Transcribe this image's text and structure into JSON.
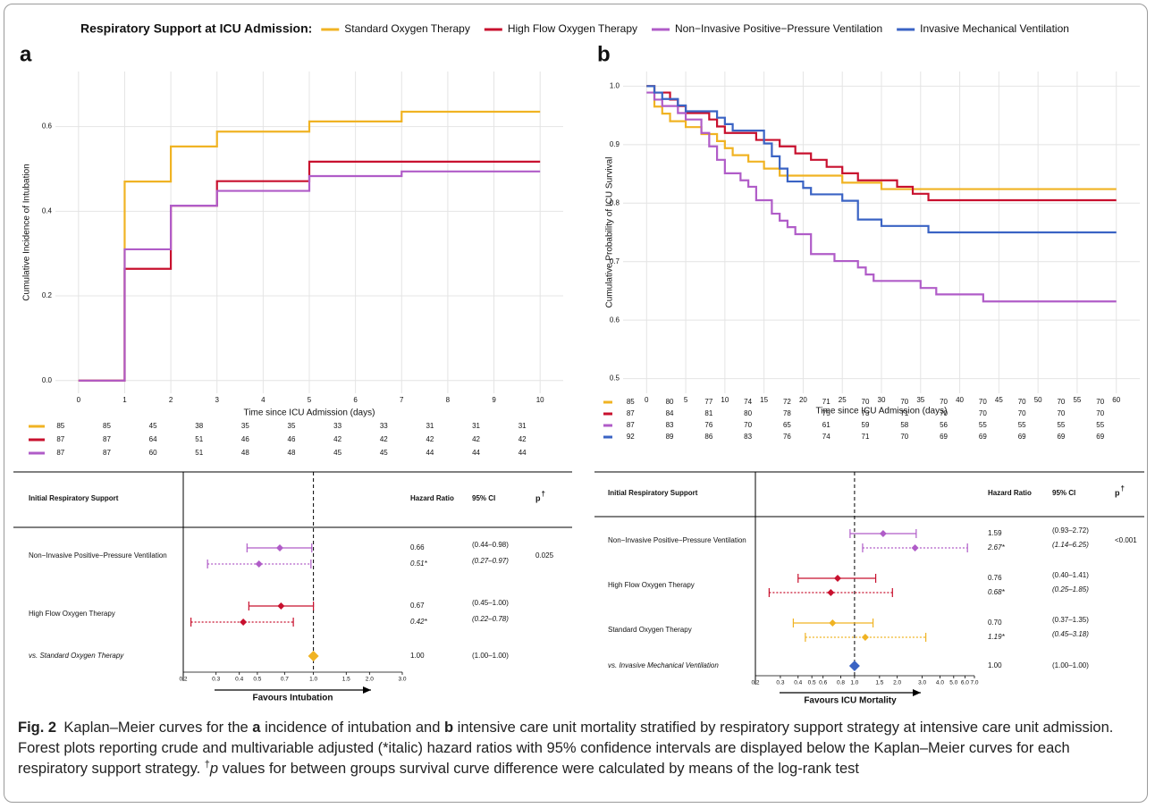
{
  "legend_title": "Respiratory Support at ICU Admission:",
  "chart_data": [
    {
      "type": "step",
      "panel": "a",
      "xlabel": "Time since ICU Admission (days)",
      "ylabel": "Cumulative Incidence of Intubation",
      "xlim": [
        -0.5,
        10.5
      ],
      "ylim": [
        -0.03,
        0.73
      ],
      "xticks": [
        0,
        1,
        2,
        3,
        4,
        5,
        6,
        7,
        8,
        9,
        10
      ],
      "yticks": [
        {
          "value": 0,
          "label": "0.0"
        },
        0.2,
        0.4,
        0.6
      ],
      "grid": true,
      "series": [
        {
          "color": "#f0b323",
          "x": [
            0,
            1,
            2,
            3,
            5,
            7,
            10
          ],
          "values": [
            0,
            0.47,
            0.553,
            0.588,
            0.612,
            0.635,
            0.635
          ],
          "at_risk": [
            85,
            85,
            45,
            38,
            35,
            35,
            33,
            33,
            31,
            31,
            31
          ]
        },
        {
          "color": "#c8102e",
          "x": [
            0,
            1,
            2,
            3,
            5,
            10
          ],
          "values": [
            0,
            0.264,
            0.413,
            0.471,
            0.517,
            0.517
          ],
          "at_risk": [
            87,
            87,
            64,
            51,
            46,
            46,
            42,
            42,
            42,
            42,
            42
          ]
        },
        {
          "color": "#b05cc8",
          "x": [
            0,
            1,
            2,
            3,
            5,
            7,
            10
          ],
          "values": [
            0,
            0.31,
            0.413,
            0.448,
            0.483,
            0.494,
            0.494
          ],
          "at_risk": [
            87,
            87,
            60,
            51,
            48,
            48,
            45,
            45,
            44,
            44,
            44
          ]
        }
      ]
    },
    {
      "type": "step",
      "panel": "b",
      "xlabel": "Time since ICU Admission (days)",
      "ylabel": "Cumulative Probability of ICU Survival",
      "xlim": [
        -3,
        63
      ],
      "ylim": [
        0.475,
        1.025
      ],
      "xticks": [
        0,
        5,
        10,
        15,
        20,
        25,
        30,
        35,
        40,
        45,
        50,
        55,
        60
      ],
      "yticks": [
        0.5,
        0.6,
        0.7,
        0.8,
        0.9,
        {
          "value": 1,
          "label": "1.0"
        }
      ],
      "grid": true,
      "series": [
        {
          "name": "Standard Oxygen Therapy",
          "color": "#f0b323",
          "x": [
            0,
            1,
            2,
            3,
            5,
            7,
            9,
            10,
            11,
            13,
            15,
            17,
            25,
            30,
            60
          ],
          "values": [
            1,
            0.965,
            0.953,
            0.94,
            0.93,
            0.918,
            0.906,
            0.894,
            0.882,
            0.871,
            0.859,
            0.847,
            0.835,
            0.824,
            0.824
          ],
          "at_risk": [
            85,
            80,
            77,
            74,
            72,
            71,
            70,
            70,
            70,
            70,
            70,
            70,
            70
          ]
        },
        {
          "name": "High Flow Oxygen Therapy",
          "color": "#c8102e",
          "x": [
            0,
            1,
            3,
            4,
            5,
            8,
            9,
            10,
            14,
            17,
            19,
            21,
            23,
            25,
            27,
            32,
            34,
            36,
            60
          ],
          "values": [
            1,
            0.989,
            0.977,
            0.966,
            0.954,
            0.943,
            0.931,
            0.92,
            0.908,
            0.897,
            0.885,
            0.874,
            0.862,
            0.851,
            0.839,
            0.828,
            0.816,
            0.805,
            0.805
          ],
          "at_risk": [
            87,
            84,
            81,
            80,
            78,
            75,
            73,
            71,
            70,
            70,
            70,
            70,
            70
          ]
        },
        {
          "name": "Non−Invasive Positive−Pressure Ventilation",
          "color": "#b05cc8",
          "x": [
            0,
            1,
            2,
            4,
            5,
            7,
            8,
            9,
            10,
            12,
            13,
            14,
            16,
            17,
            18,
            19,
            21,
            24,
            27,
            28,
            29,
            35,
            37,
            43,
            60
          ],
          "values": [
            0.989,
            0.977,
            0.966,
            0.954,
            0.943,
            0.92,
            0.897,
            0.874,
            0.851,
            0.839,
            0.828,
            0.805,
            0.782,
            0.77,
            0.759,
            0.747,
            0.713,
            0.701,
            0.69,
            0.678,
            0.667,
            0.655,
            0.644,
            0.632,
            0.632
          ],
          "at_risk": [
            87,
            83,
            76,
            70,
            65,
            61,
            59,
            58,
            56,
            55,
            55,
            55,
            55
          ]
        },
        {
          "name": "Invasive Mechanical Ventilation",
          "color": "#3a63c4",
          "x": [
            0,
            1,
            2,
            4,
            5,
            9,
            10,
            11,
            15,
            16,
            17,
            18,
            20,
            21,
            25,
            27,
            30,
            36,
            60
          ],
          "values": [
            1,
            0.989,
            0.978,
            0.967,
            0.957,
            0.946,
            0.935,
            0.924,
            0.902,
            0.88,
            0.859,
            0.837,
            0.826,
            0.815,
            0.804,
            0.772,
            0.761,
            0.75,
            0.75
          ],
          "at_risk": [
            92,
            89,
            86,
            83,
            76,
            74,
            71,
            70,
            69,
            69,
            69,
            69,
            69
          ]
        }
      ]
    },
    {
      "type": "forest",
      "log": true,
      "xlim": [
        0.2,
        3.0
      ],
      "xlabel": "Favours Intubation",
      "xticks": [
        0.2,
        0.3,
        0.4,
        0.5,
        0.7,
        {
          "value": 1,
          "label": "1.0"
        },
        1.5,
        {
          "value": 2,
          "label": "2.0"
        },
        {
          "value": 3,
          "label": "3.0"
        }
      ],
      "header": {
        "label": "Initial Respiratory Support",
        "hr": "Hazard Ratio",
        "ci": "95% CI",
        "p": "p",
        "p_sup": "†"
      },
      "rows": [
        {
          "label": "Non−Invasive Positive−Pressure Ventilation",
          "color": "#b05cc8",
          "p": 0.025,
          "estimates": [
            {
              "hr": 0.66,
              "lo": 0.44,
              "hi": 0.98,
              "hr_label": "0.66",
              "ci_label": "(0.44–0.98)",
              "adjusted": false
            },
            {
              "hr": 0.51,
              "lo": 0.27,
              "hi": 0.97,
              "hr_label": "0.51*",
              "ci_label": "(0.27–0.97)",
              "adjusted": true
            }
          ]
        },
        {
          "label": "High Flow Oxygen Therapy",
          "color": "#c8102e",
          "estimates": [
            {
              "hr": 0.67,
              "lo": 0.45,
              "hi": 1.0,
              "hr_label": "0.67",
              "ci_label": "(0.45–1.00)",
              "adjusted": false
            },
            {
              "hr": 0.42,
              "lo": 0.22,
              "hi": 0.78,
              "hr_label": "0.42*",
              "ci_label": "(0.22–0.78)",
              "adjusted": true
            }
          ]
        },
        {
          "label": "vs. Standard Oxygen Therapy",
          "color": "#f0b323",
          "reference": true,
          "estimates": [
            {
              "hr": 1.0,
              "lo": 1.0,
              "hi": 1.0,
              "hr_label": "1.00",
              "ci_label": "(1.00–1.00)",
              "adjusted": false
            }
          ]
        }
      ]
    },
    {
      "type": "forest",
      "log": true,
      "xlim": [
        0.2,
        7.0
      ],
      "xlabel": "Favours ICU Mortality",
      "xticks": [
        0.2,
        0.3,
        0.4,
        0.5,
        0.6,
        0.8,
        {
          "value": 1,
          "label": "1.0"
        },
        1.5,
        {
          "value": 2,
          "label": "2.0"
        },
        {
          "value": 3,
          "label": "3.0"
        },
        {
          "value": 4,
          "label": "4.0"
        },
        {
          "value": 5,
          "label": "5.0"
        },
        {
          "value": 6,
          "label": "6.0"
        },
        {
          "value": 7,
          "label": "7.0"
        }
      ],
      "header": {
        "label": "Initial Respiratory Support",
        "hr": "Hazard Ratio",
        "ci": "95% CI",
        "p": "p",
        "p_sup": "†"
      },
      "rows": [
        {
          "label": "Non−Invasive Positive−Pressure Ventilation",
          "color": "#b05cc8",
          "p": "<0.001",
          "estimates": [
            {
              "hr": 1.59,
              "lo": 0.93,
              "hi": 2.72,
              "hr_label": "1.59",
              "ci_label": "(0.93–2.72)",
              "adjusted": false
            },
            {
              "hr": 2.67,
              "lo": 1.14,
              "hi": 6.25,
              "hr_label": "2.67*",
              "ci_label": "(1.14–6.25)",
              "adjusted": true
            }
          ]
        },
        {
          "label": "High Flow Oxygen Therapy",
          "color": "#c8102e",
          "estimates": [
            {
              "hr": 0.76,
              "lo": 0.4,
              "hi": 1.41,
              "hr_label": "0.76",
              "ci_label": "(0.40–1.41)",
              "adjusted": false
            },
            {
              "hr": 0.68,
              "lo": 0.25,
              "hi": 1.85,
              "hr_label": "0.68*",
              "ci_label": "(0.25–1.85)",
              "adjusted": true
            }
          ]
        },
        {
          "label": "Standard Oxygen Therapy",
          "color": "#f0b323",
          "estimates": [
            {
              "hr": 0.7,
              "lo": 0.37,
              "hi": 1.35,
              "hr_label": "0.70",
              "ci_label": "(0.37–1.35)",
              "adjusted": false
            },
            {
              "hr": 1.19,
              "lo": 0.45,
              "hi": 3.18,
              "hr_label": "1.19*",
              "ci_label": "(0.45–3.18)",
              "adjusted": true
            }
          ]
        },
        {
          "label": "vs. Invasive Mechanical Ventilation",
          "color": "#3a63c4",
          "reference": true,
          "estimates": [
            {
              "hr": 1.0,
              "lo": 1.0,
              "hi": 1.0,
              "hr_label": "1.00",
              "ci_label": "(1.00–1.00)",
              "adjusted": false
            }
          ]
        }
      ]
    }
  ],
  "caption": {
    "runs": [
      {
        "text": "Fig. 2",
        "style": "bold"
      },
      {
        "text": " Kaplan–Meier curves for the "
      },
      {
        "text": "a",
        "style": "bold"
      },
      {
        "text": " incidence of intubation and "
      },
      {
        "text": "b",
        "style": "bold"
      },
      {
        "text": " intensive care unit mortality stratified by respiratory support strategy at intensive care unit admission. Forest plots reporting crude and multivariable adjusted (*italic) hazard ratios with 95% confidence intervals are displayed below the Kaplan–Meier curves for each respiratory support strategy. "
      },
      {
        "text": "†",
        "style": "sup"
      },
      {
        "text": "p",
        "style": "italic"
      },
      {
        "text": " values for between groups survival curve difference were calculated by means of the log-rank test"
      }
    ]
  }
}
